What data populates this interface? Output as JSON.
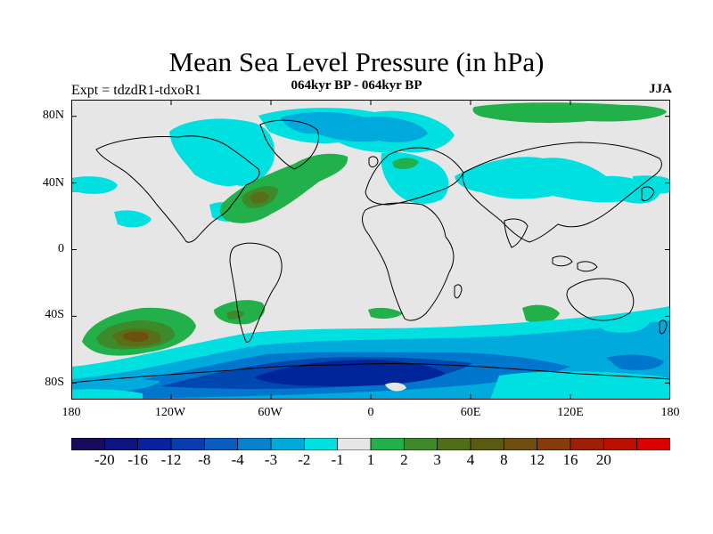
{
  "title": "Mean Sea Level Pressure (in hPa)",
  "subtitle": "064kyr BP - 064kyr BP",
  "expt_label": "Expt = tdzdR1-tdxoR1",
  "season": "JJA",
  "map": {
    "y_ticks": [
      {
        "label": "80N",
        "lat": 80
      },
      {
        "label": "40N",
        "lat": 40
      },
      {
        "label": "0",
        "lat": 0
      },
      {
        "label": "40S",
        "lat": -40
      },
      {
        "label": "80S",
        "lat": -80
      }
    ],
    "x_ticks": [
      {
        "label": "180",
        "lon": -180
      },
      {
        "label": "120W",
        "lon": -120
      },
      {
        "label": "60W",
        "lon": -60
      },
      {
        "label": "0",
        "lon": 0
      },
      {
        "label": "60E",
        "lon": 60
      },
      {
        "label": "120E",
        "lon": 120
      },
      {
        "label": "180",
        "lon": 180
      }
    ],
    "lon_range": [
      -180,
      180
    ],
    "lat_range": [
      -90,
      90
    ],
    "background_color": "#e6e6e6",
    "colors": {
      "cyan": "#00e0e0",
      "light_blue": "#00aadd",
      "mid_blue": "#0077cc",
      "blue": "#0048b0",
      "deep_blue": "#00249a",
      "green": "#22b04a",
      "olive_green": "#3c8a2a",
      "olive": "#5a6e18",
      "brown": "#704d10"
    }
  },
  "colorbar": {
    "colors": [
      "#1a0a5e",
      "#0d1380",
      "#0a22a0",
      "#0a3cb0",
      "#0a5cc0",
      "#0a80d0",
      "#00aadd",
      "#00e0e0",
      "#e6e6e6",
      "#22b04a",
      "#3c8a2a",
      "#4e6e18",
      "#5a5a10",
      "#704d10",
      "#883a0a",
      "#9e2008",
      "#bb1000",
      "#dd0000"
    ],
    "labels": [
      "-20",
      "-16",
      "-12",
      "-8",
      "-4",
      "-3",
      "-2",
      "-1",
      "1",
      "2",
      "3",
      "4",
      "8",
      "12",
      "16",
      "20"
    ]
  }
}
